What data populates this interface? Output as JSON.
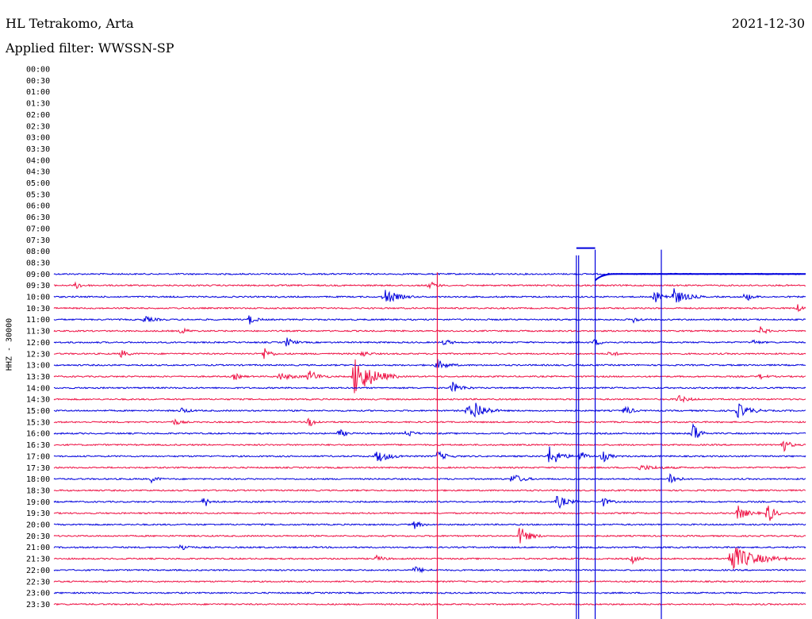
{
  "header": {
    "station": "HL Tetrakomo, Arta",
    "filter": "Applied filter: WWSSN-SP",
    "date": "2021-12-30"
  },
  "channel_label": "HHZ - 30000",
  "colors": {
    "trace_a": "#ee1144",
    "trace_b": "#0000dd"
  },
  "chart_data": {
    "type": "line",
    "title": "HL Tetrakomo, Arta",
    "subtitle": "Applied filter: WWSSN-SP",
    "date": "2021-12-30",
    "ylabel": "HHZ - 30000",
    "time_labels": [
      "00:00",
      "00:30",
      "01:00",
      "01:30",
      "02:00",
      "02:30",
      "03:00",
      "03:30",
      "04:00",
      "04:30",
      "05:00",
      "05:30",
      "06:00",
      "06:30",
      "07:00",
      "07:30",
      "08:00",
      "08:30",
      "09:00",
      "09:30",
      "10:00",
      "10:30",
      "11:00",
      "11:30",
      "12:00",
      "12:30",
      "13:00",
      "13:30",
      "14:00",
      "14:30",
      "15:00",
      "15:30",
      "16:00",
      "16:30",
      "17:00",
      "17:30",
      "18:00",
      "18:30",
      "19:00",
      "19:30",
      "20:00",
      "20:30",
      "21:00",
      "21:30",
      "22:00",
      "22:30",
      "23:00",
      "23:30"
    ],
    "first_trace_index": 18,
    "trace_colors": [
      "#0000dd",
      "#ee1144"
    ],
    "grid": false,
    "events": [
      {
        "row": 19,
        "t": 0.03,
        "amp": 4,
        "dur": 0.02
      },
      {
        "row": 19,
        "t": 0.5,
        "amp": 5,
        "dur": 0.02
      },
      {
        "row": 20,
        "t": 0.44,
        "amp": 10,
        "dur": 0.04
      },
      {
        "row": 20,
        "t": 0.8,
        "amp": 7,
        "dur": 0.03
      },
      {
        "row": 20,
        "t": 0.825,
        "amp": 10,
        "dur": 0.04
      },
      {
        "row": 20,
        "t": 0.92,
        "amp": 6,
        "dur": 0.02
      },
      {
        "row": 21,
        "t": 0.99,
        "amp": 8,
        "dur": 0.01
      },
      {
        "row": 22,
        "t": 0.12,
        "amp": 4,
        "dur": 0.03
      },
      {
        "row": 22,
        "t": 0.26,
        "amp": 6,
        "dur": 0.02
      },
      {
        "row": 22,
        "t": 0.77,
        "amp": 4,
        "dur": 0.02
      },
      {
        "row": 23,
        "t": 0.17,
        "amp": 4,
        "dur": 0.02
      },
      {
        "row": 23,
        "t": 0.94,
        "amp": 5,
        "dur": 0.02
      },
      {
        "row": 24,
        "t": 0.31,
        "amp": 6,
        "dur": 0.02
      },
      {
        "row": 24,
        "t": 0.52,
        "amp": 4,
        "dur": 0.02
      },
      {
        "row": 24,
        "t": 0.72,
        "amp": 4,
        "dur": 0.02
      },
      {
        "row": 24,
        "t": 0.93,
        "amp": 3,
        "dur": 0.02
      },
      {
        "row": 25,
        "t": 0.09,
        "amp": 5,
        "dur": 0.02
      },
      {
        "row": 25,
        "t": 0.28,
        "amp": 8,
        "dur": 0.02
      },
      {
        "row": 25,
        "t": 0.41,
        "amp": 4,
        "dur": 0.02
      },
      {
        "row": 25,
        "t": 0.74,
        "amp": 4,
        "dur": 0.02
      },
      {
        "row": 26,
        "t": 0.51,
        "amp": 7,
        "dur": 0.03
      },
      {
        "row": 27,
        "t": 0.24,
        "amp": 4,
        "dur": 0.02
      },
      {
        "row": 27,
        "t": 0.3,
        "amp": 4,
        "dur": 0.05
      },
      {
        "row": 27,
        "t": 0.34,
        "amp": 8,
        "dur": 0.03
      },
      {
        "row": 27,
        "t": 0.4,
        "amp": 26,
        "dur": 0.06
      },
      {
        "row": 27,
        "t": 0.94,
        "amp": 3,
        "dur": 0.02
      },
      {
        "row": 28,
        "t": 0.53,
        "amp": 7,
        "dur": 0.03
      },
      {
        "row": 29,
        "t": 0.83,
        "amp": 5,
        "dur": 0.03
      },
      {
        "row": 30,
        "t": 0.17,
        "amp": 4,
        "dur": 0.02
      },
      {
        "row": 30,
        "t": 0.55,
        "amp": 6,
        "dur": 0.05
      },
      {
        "row": 30,
        "t": 0.56,
        "amp": 10,
        "dur": 0.03
      },
      {
        "row": 30,
        "t": 0.76,
        "amp": 7,
        "dur": 0.02
      },
      {
        "row": 30,
        "t": 0.91,
        "amp": 9,
        "dur": 0.04
      },
      {
        "row": 31,
        "t": 0.16,
        "amp": 4,
        "dur": 0.02
      },
      {
        "row": 31,
        "t": 0.34,
        "amp": 6,
        "dur": 0.02
      },
      {
        "row": 32,
        "t": 0.38,
        "amp": 5,
        "dur": 0.02
      },
      {
        "row": 32,
        "t": 0.47,
        "amp": 5,
        "dur": 0.02
      },
      {
        "row": 32,
        "t": 0.85,
        "amp": 16,
        "dur": 0.02
      },
      {
        "row": 33,
        "t": 0.97,
        "amp": 9,
        "dur": 0.02
      },
      {
        "row": 34,
        "t": 0.43,
        "amp": 8,
        "dur": 0.04
      },
      {
        "row": 34,
        "t": 0.51,
        "amp": 6,
        "dur": 0.03
      },
      {
        "row": 34,
        "t": 0.66,
        "amp": 15,
        "dur": 0.03
      },
      {
        "row": 34,
        "t": 0.7,
        "amp": 7,
        "dur": 0.02
      },
      {
        "row": 34,
        "t": 0.73,
        "amp": 8,
        "dur": 0.02
      },
      {
        "row": 35,
        "t": 0.78,
        "amp": 3,
        "dur": 0.06
      },
      {
        "row": 36,
        "t": 0.13,
        "amp": 4,
        "dur": 0.02
      },
      {
        "row": 36,
        "t": 0.61,
        "amp": 7,
        "dur": 0.03
      },
      {
        "row": 36,
        "t": 0.82,
        "amp": 10,
        "dur": 0.02
      },
      {
        "row": 38,
        "t": 0.2,
        "amp": 7,
        "dur": 0.02
      },
      {
        "row": 38,
        "t": 0.67,
        "amp": 9,
        "dur": 0.03
      },
      {
        "row": 38,
        "t": 0.73,
        "amp": 6,
        "dur": 0.02
      },
      {
        "row": 39,
        "t": 0.91,
        "amp": 9,
        "dur": 0.03
      },
      {
        "row": 39,
        "t": 0.95,
        "amp": 14,
        "dur": 0.02
      },
      {
        "row": 40,
        "t": 0.48,
        "amp": 5,
        "dur": 0.02
      },
      {
        "row": 41,
        "t": 0.62,
        "amp": 12,
        "dur": 0.03
      },
      {
        "row": 42,
        "t": 0.17,
        "amp": 5,
        "dur": 0.02
      },
      {
        "row": 43,
        "t": 0.43,
        "amp": 4,
        "dur": 0.02
      },
      {
        "row": 43,
        "t": 0.77,
        "amp": 5,
        "dur": 0.02
      },
      {
        "row": 43,
        "t": 0.9,
        "amp": 18,
        "dur": 0.08
      },
      {
        "row": 44,
        "t": 0.48,
        "amp": 4,
        "dur": 0.03
      }
    ],
    "spikes": [
      {
        "t": 0.51,
        "rows": [
          18,
          47
        ],
        "color": "#ee1144"
      },
      {
        "t": 0.695,
        "rows": [
          16.5,
          47
        ],
        "color": "#0000dd"
      },
      {
        "t": 0.698,
        "rows": [
          16.5,
          47
        ],
        "color": "#0000dd"
      },
      {
        "t": 0.72,
        "rows": [
          16.0,
          47
        ],
        "color": "#0000dd"
      },
      {
        "t": 0.808,
        "rows": [
          16.0,
          47
        ],
        "color": "#0000dd"
      }
    ]
  }
}
